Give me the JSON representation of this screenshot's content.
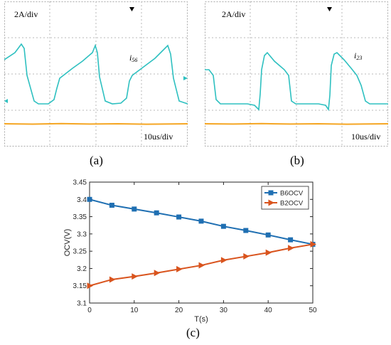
{
  "panels": {
    "a": {
      "label": "(a)",
      "scale_text": "2A/div",
      "trace_label": "i",
      "trace_sub": "56",
      "time_text": "10us/div"
    },
    "b": {
      "label": "(b)",
      "scale_text": "2A/div",
      "trace_label": "i",
      "trace_sub": "23",
      "time_text": "10us/div"
    },
    "c": {
      "label": "(c)"
    }
  },
  "colors": {
    "scope_grid": "#a8a8a8",
    "scope_current": "#2ec0c0",
    "scope_baseline": "#f5a623",
    "b6_series": "#1f6fb2",
    "b2_series": "#d9541e"
  },
  "chart_data": [
    {
      "type": "line",
      "title": "",
      "xlabel": "T(s)",
      "ylabel": "OCV(V)",
      "xlim": [
        0,
        50
      ],
      "ylim": [
        3.1,
        3.45
      ],
      "xticks": [
        "0",
        "10",
        "20",
        "30",
        "40",
        "50"
      ],
      "yticks": [
        "3.1",
        "3.15",
        "3.2",
        "3.25",
        "3.3",
        "3.35",
        "3.4",
        "3.45"
      ],
      "legend_position": "top-right",
      "x": [
        0,
        5,
        10,
        15,
        20,
        25,
        30,
        35,
        40,
        45,
        50
      ],
      "series": [
        {
          "name": "B6OCV",
          "color": "#1f6fb2",
          "marker": "square",
          "values": [
            3.4,
            3.383,
            3.372,
            3.361,
            3.349,
            3.337,
            3.322,
            3.31,
            3.297,
            3.283,
            3.27
          ]
        },
        {
          "name": "B2OCV",
          "color": "#d9541e",
          "marker": "triangle-right",
          "values": [
            3.15,
            3.168,
            3.177,
            3.187,
            3.198,
            3.209,
            3.224,
            3.235,
            3.246,
            3.259,
            3.27
          ]
        }
      ],
      "grid": false
    }
  ]
}
